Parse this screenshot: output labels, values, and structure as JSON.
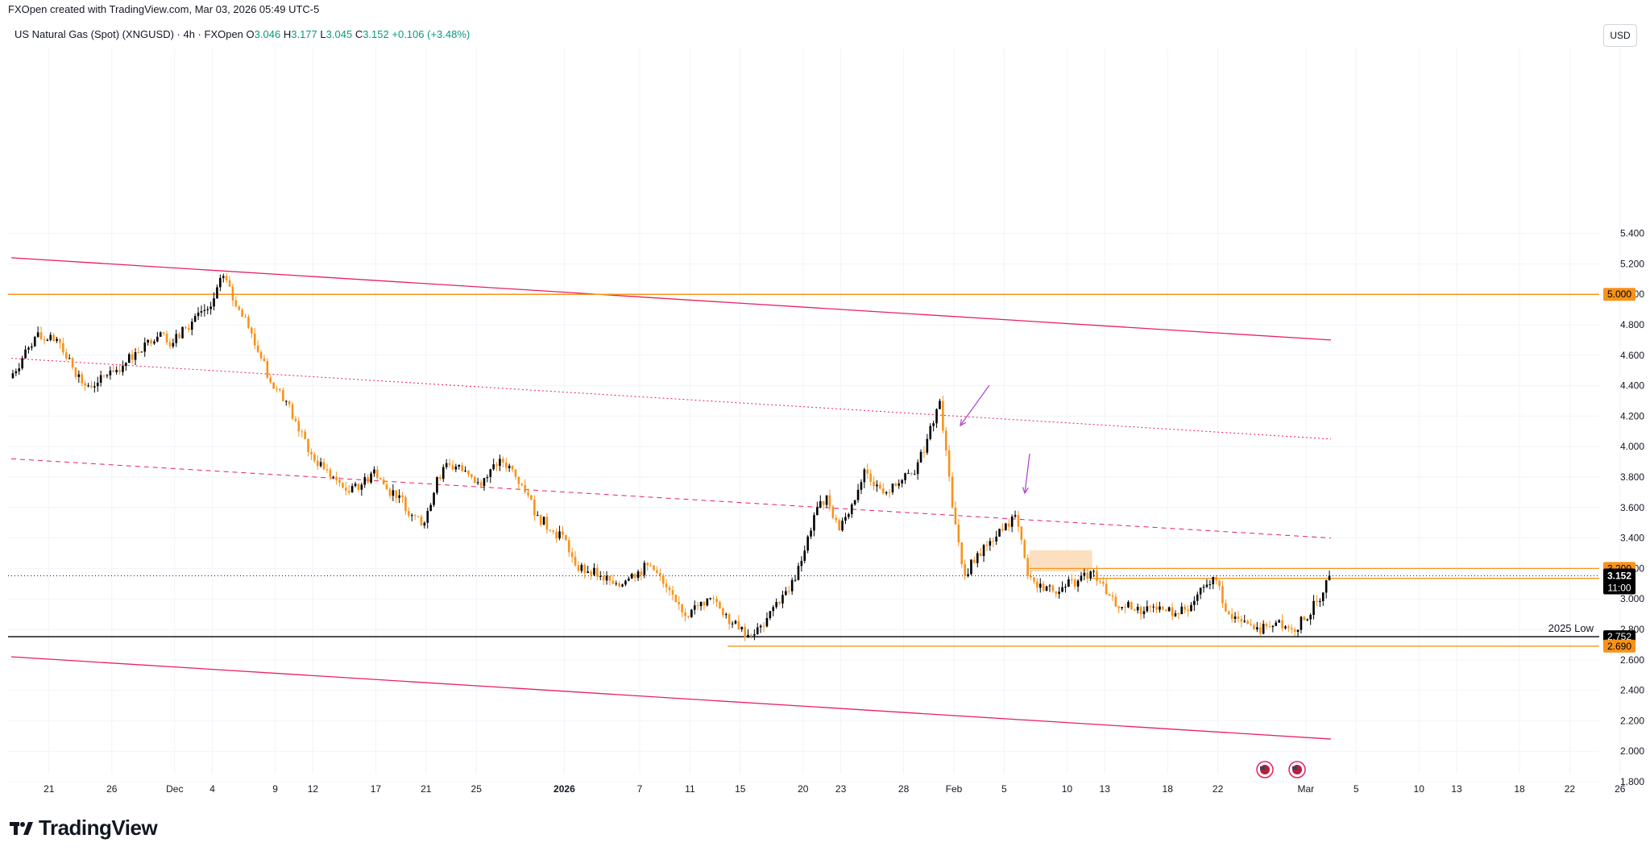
{
  "header": {
    "created_by": "FXOpen created with TradingView.com, Mar 03, 2026 05:49 UTC-5"
  },
  "symbol": {
    "name": "US Natural Gas (Spot) (XNGUSD) · 4h · FXOpen",
    "open_label": "O",
    "open": "3.046",
    "high_label": "H",
    "high": "3.177",
    "low_label": "L",
    "low": "3.045",
    "close_label": "C",
    "close": "3.152",
    "change": "+0.106 (+3.48%)"
  },
  "currency_button": "USD",
  "brand": "TradingView",
  "colors": {
    "up": "#000000",
    "down": "#f7931a",
    "channel": "#e91e63",
    "level": "#f7931a",
    "label_bg": "#f7931a",
    "current_label_bg": "#000000"
  },
  "chart_data": {
    "type": "candlestick",
    "ylim": [
      1.7,
      5.5
    ],
    "y_ticks": [
      "5.400",
      "5.200",
      "5.000",
      "4.800",
      "4.600",
      "4.400",
      "4.200",
      "4.000",
      "3.800",
      "3.600",
      "3.400",
      "3.200",
      "3.000",
      "2.800",
      "2.600",
      "2.400",
      "2.200",
      "2.000",
      "1.800"
    ],
    "x_ticks": [
      "21",
      "26",
      "Dec",
      "4",
      "9",
      "12",
      "17",
      "21",
      "25",
      "2026",
      "7",
      "11",
      "15",
      "20",
      "23",
      "28",
      "Feb",
      "5",
      "10",
      "13",
      "18",
      "22",
      "Mar",
      "5",
      "10",
      "13",
      "18",
      "22",
      "26"
    ],
    "x_range": [
      "2025-11-18",
      "2026-03-31"
    ],
    "price_series": [
      [
        "2025-11-18",
        4.45
      ],
      [
        "2025-11-19",
        4.58
      ],
      [
        "2025-11-20",
        4.72
      ],
      [
        "2025-11-21",
        4.7
      ],
      [
        "2025-11-22",
        4.68
      ],
      [
        "2025-11-23",
        4.52
      ],
      [
        "2025-11-24",
        4.4
      ],
      [
        "2025-11-25",
        4.42
      ],
      [
        "2025-11-26",
        4.5
      ],
      [
        "2025-11-27",
        4.53
      ],
      [
        "2025-11-28",
        4.62
      ],
      [
        "2025-11-29",
        4.7
      ],
      [
        "2025-11-30",
        4.75
      ],
      [
        "2025-12-01",
        4.68
      ],
      [
        "2025-12-02",
        4.78
      ],
      [
        "2025-12-03",
        4.88
      ],
      [
        "2025-12-04",
        4.92
      ],
      [
        "2025-12-05",
        5.12
      ],
      [
        "2025-12-06",
        4.92
      ],
      [
        "2025-12-07",
        4.78
      ],
      [
        "2025-12-08",
        4.58
      ],
      [
        "2025-12-09",
        4.38
      ],
      [
        "2025-12-10",
        4.3
      ],
      [
        "2025-12-11",
        4.1
      ],
      [
        "2025-12-12",
        3.95
      ],
      [
        "2025-12-13",
        3.85
      ],
      [
        "2025-12-14",
        3.78
      ],
      [
        "2025-12-15",
        3.7
      ],
      [
        "2025-12-16",
        3.75
      ],
      [
        "2025-12-17",
        3.85
      ],
      [
        "2025-12-18",
        3.72
      ],
      [
        "2025-12-19",
        3.68
      ],
      [
        "2025-12-20",
        3.55
      ],
      [
        "2025-12-21",
        3.5
      ],
      [
        "2025-12-22",
        3.8
      ],
      [
        "2025-12-23",
        3.88
      ],
      [
        "2025-12-24",
        3.84
      ],
      [
        "2025-12-25",
        3.76
      ],
      [
        "2025-12-26",
        3.8
      ],
      [
        "2025-12-27",
        3.92
      ],
      [
        "2025-12-28",
        3.85
      ],
      [
        "2025-12-29",
        3.7
      ],
      [
        "2025-12-30",
        3.55
      ],
      [
        "2025-12-31",
        3.45
      ],
      [
        "2026-01-01",
        3.42
      ],
      [
        "2026-01-02",
        3.22
      ],
      [
        "2026-01-03",
        3.18
      ],
      [
        "2026-01-04",
        3.15
      ],
      [
        "2026-01-05",
        3.1
      ],
      [
        "2026-01-06",
        3.12
      ],
      [
        "2026-01-07",
        3.18
      ],
      [
        "2026-01-08",
        3.22
      ],
      [
        "2026-01-09",
        3.1
      ],
      [
        "2026-01-10",
        2.98
      ],
      [
        "2026-01-11",
        2.88
      ],
      [
        "2026-01-12",
        2.98
      ],
      [
        "2026-01-13",
        3.0
      ],
      [
        "2026-01-14",
        2.9
      ],
      [
        "2026-01-15",
        2.8
      ],
      [
        "2026-01-16",
        2.76
      ],
      [
        "2026-01-17",
        2.82
      ],
      [
        "2026-01-18",
        2.98
      ],
      [
        "2026-01-19",
        3.05
      ],
      [
        "2026-01-20",
        3.25
      ],
      [
        "2026-01-21",
        3.55
      ],
      [
        "2026-01-22",
        3.68
      ],
      [
        "2026-01-23",
        3.45
      ],
      [
        "2026-01-24",
        3.62
      ],
      [
        "2026-01-25",
        3.85
      ],
      [
        "2026-01-26",
        3.75
      ],
      [
        "2026-01-27",
        3.7
      ],
      [
        "2026-01-28",
        3.78
      ],
      [
        "2026-01-29",
        3.82
      ],
      [
        "2026-01-30",
        4.05
      ],
      [
        "2026-01-31",
        4.3
      ],
      [
        "2026-02-01",
        3.6
      ],
      [
        "2026-02-02",
        3.15
      ],
      [
        "2026-02-03",
        3.3
      ],
      [
        "2026-02-04",
        3.38
      ],
      [
        "2026-02-05",
        3.45
      ],
      [
        "2026-02-06",
        3.55
      ],
      [
        "2026-02-07",
        3.15
      ],
      [
        "2026-02-08",
        3.1
      ],
      [
        "2026-02-09",
        3.05
      ],
      [
        "2026-02-10",
        3.08
      ],
      [
        "2026-02-11",
        3.12
      ],
      [
        "2026-02-12",
        3.18
      ],
      [
        "2026-02-13",
        3.1
      ],
      [
        "2026-02-14",
        2.95
      ],
      [
        "2026-02-15",
        2.98
      ],
      [
        "2026-02-16",
        2.9
      ],
      [
        "2026-02-17",
        2.95
      ],
      [
        "2026-02-18",
        2.92
      ],
      [
        "2026-02-19",
        2.9
      ],
      [
        "2026-02-20",
        2.96
      ],
      [
        "2026-02-21",
        3.08
      ],
      [
        "2026-02-22",
        3.12
      ],
      [
        "2026-02-23",
        2.9
      ],
      [
        "2026-02-24",
        2.85
      ],
      [
        "2026-02-25",
        2.8
      ],
      [
        "2026-02-26",
        2.82
      ],
      [
        "2026-02-27",
        2.86
      ],
      [
        "2026-02-28",
        2.8
      ],
      [
        "2026-03-01",
        2.86
      ],
      [
        "2026-03-02",
        2.98
      ],
      [
        "2026-03-03",
        3.152
      ]
    ],
    "horizontal_levels": [
      {
        "price": 5.0,
        "label": "5.000",
        "color": "#f7931a"
      },
      {
        "price": 3.2,
        "label": "3.200",
        "color": "#f7931a"
      },
      {
        "price": 2.752,
        "label": "2.752",
        "color": "#000000",
        "note": "2025 Low"
      },
      {
        "price": 2.69,
        "label": "2.690",
        "color": "#f7931a"
      }
    ],
    "current_price": {
      "price": 3.152,
      "label": "3.152",
      "countdown": "11:00"
    },
    "annotation_text": "2025 Low",
    "channel": {
      "upper": [
        [
          "2025-11-18",
          5.24
        ],
        [
          "2026-03-03",
          4.7
        ]
      ],
      "mid_upper": [
        [
          "2025-11-18",
          4.58
        ],
        [
          "2026-03-03",
          4.05
        ]
      ],
      "middle": [
        [
          "2025-11-18",
          3.92
        ],
        [
          "2026-03-03",
          3.4
        ]
      ],
      "lower": [
        [
          "2025-11-18",
          2.62
        ],
        [
          "2026-03-03",
          2.08
        ]
      ]
    },
    "zone": {
      "from": "2026-02-07",
      "to": "2026-02-12",
      "low": 3.18,
      "high": 3.32
    },
    "event_icons": [
      "us-flag-icon",
      "us-flag-icon"
    ]
  }
}
